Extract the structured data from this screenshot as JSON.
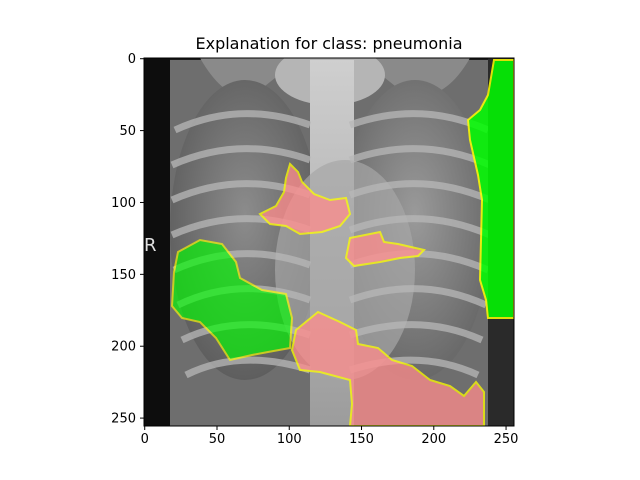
{
  "figure": {
    "title": "Explanation for class: pneumonia"
  },
  "image": {
    "description_label": "chest x-ray explanation overlay",
    "marker_text": "R",
    "pixel_extent": [
      256,
      256
    ]
  },
  "axes": {
    "x_ticks": [
      "0",
      "50",
      "100",
      "150",
      "200",
      "250"
    ],
    "y_ticks": [
      "0",
      "50",
      "100",
      "150",
      "200",
      "250"
    ]
  },
  "colors": {
    "positive_region": "#00ff00",
    "negative_region": "#ff8c8c",
    "boundary": "#ffff00",
    "background": "#000000"
  }
}
